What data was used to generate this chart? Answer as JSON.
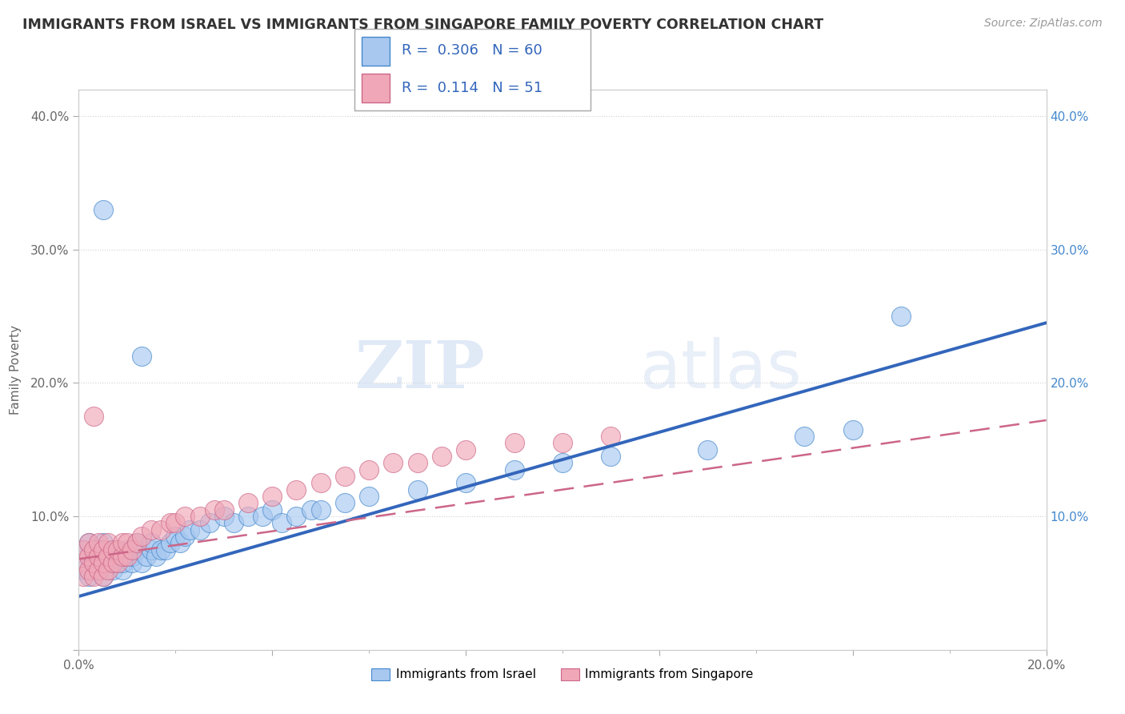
{
  "title": "IMMIGRANTS FROM ISRAEL VS IMMIGRANTS FROM SINGAPORE FAMILY POVERTY CORRELATION CHART",
  "source": "Source: ZipAtlas.com",
  "ylabel": "Family Poverty",
  "watermark_zip": "ZIP",
  "watermark_atlas": "atlas",
  "xmin": 0.0,
  "xmax": 0.2,
  "ymin": 0.0,
  "ymax": 0.42,
  "ytick_vals": [
    0.0,
    0.1,
    0.2,
    0.3,
    0.4
  ],
  "ytick_labels": [
    "",
    "10.0%",
    "20.0%",
    "30.0%",
    "40.0%"
  ],
  "xtick_vals": [
    0.0,
    0.04,
    0.08,
    0.12,
    0.16,
    0.2
  ],
  "xtick_labels": [
    "0.0%",
    "",
    "",
    "",
    "",
    "20.0%"
  ],
  "legend1_R": "0.306",
  "legend1_N": "60",
  "legend2_R": "0.114",
  "legend2_N": "51",
  "israel_color": "#a8c8f0",
  "singapore_color": "#f0a8b8",
  "israel_edge_color": "#4488cc",
  "singapore_edge_color": "#cc6688",
  "israel_line_color": "#3366bb",
  "singapore_line_color": "#cc6688",
  "israel_x": [
    0.001,
    0.001,
    0.002,
    0.002,
    0.003,
    0.003,
    0.004,
    0.004,
    0.005,
    0.005,
    0.006,
    0.006,
    0.007,
    0.007,
    0.008,
    0.008,
    0.009,
    0.009,
    0.01,
    0.01,
    0.011,
    0.011,
    0.012,
    0.012,
    0.013,
    0.014,
    0.015,
    0.015,
    0.016,
    0.017,
    0.018,
    0.019,
    0.02,
    0.021,
    0.022,
    0.023,
    0.025,
    0.027,
    0.03,
    0.032,
    0.035,
    0.038,
    0.04,
    0.042,
    0.045,
    0.048,
    0.05,
    0.055,
    0.06,
    0.07,
    0.08,
    0.09,
    0.1,
    0.11,
    0.13,
    0.15,
    0.16,
    0.005,
    0.013,
    0.17
  ],
  "israel_y": [
    0.06,
    0.075,
    0.055,
    0.08,
    0.065,
    0.07,
    0.06,
    0.075,
    0.055,
    0.08,
    0.065,
    0.07,
    0.06,
    0.065,
    0.07,
    0.075,
    0.06,
    0.065,
    0.07,
    0.075,
    0.065,
    0.07,
    0.075,
    0.08,
    0.065,
    0.07,
    0.075,
    0.08,
    0.07,
    0.075,
    0.075,
    0.08,
    0.085,
    0.08,
    0.085,
    0.09,
    0.09,
    0.095,
    0.1,
    0.095,
    0.1,
    0.1,
    0.105,
    0.095,
    0.1,
    0.105,
    0.105,
    0.11,
    0.115,
    0.12,
    0.125,
    0.135,
    0.14,
    0.145,
    0.15,
    0.16,
    0.165,
    0.33,
    0.22,
    0.25
  ],
  "singapore_x": [
    0.001,
    0.001,
    0.001,
    0.002,
    0.002,
    0.002,
    0.003,
    0.003,
    0.003,
    0.004,
    0.004,
    0.004,
    0.005,
    0.005,
    0.005,
    0.006,
    0.006,
    0.006,
    0.007,
    0.007,
    0.008,
    0.008,
    0.009,
    0.009,
    0.01,
    0.01,
    0.011,
    0.012,
    0.013,
    0.015,
    0.017,
    0.019,
    0.02,
    0.022,
    0.025,
    0.028,
    0.03,
    0.035,
    0.04,
    0.045,
    0.05,
    0.055,
    0.06,
    0.065,
    0.07,
    0.075,
    0.08,
    0.09,
    0.1,
    0.11,
    0.003
  ],
  "singapore_y": [
    0.065,
    0.055,
    0.075,
    0.06,
    0.07,
    0.08,
    0.055,
    0.065,
    0.075,
    0.06,
    0.07,
    0.08,
    0.055,
    0.065,
    0.075,
    0.06,
    0.07,
    0.08,
    0.065,
    0.075,
    0.065,
    0.075,
    0.07,
    0.08,
    0.07,
    0.08,
    0.075,
    0.08,
    0.085,
    0.09,
    0.09,
    0.095,
    0.095,
    0.1,
    0.1,
    0.105,
    0.105,
    0.11,
    0.115,
    0.12,
    0.125,
    0.13,
    0.135,
    0.14,
    0.14,
    0.145,
    0.15,
    0.155,
    0.155,
    0.16,
    0.175
  ]
}
